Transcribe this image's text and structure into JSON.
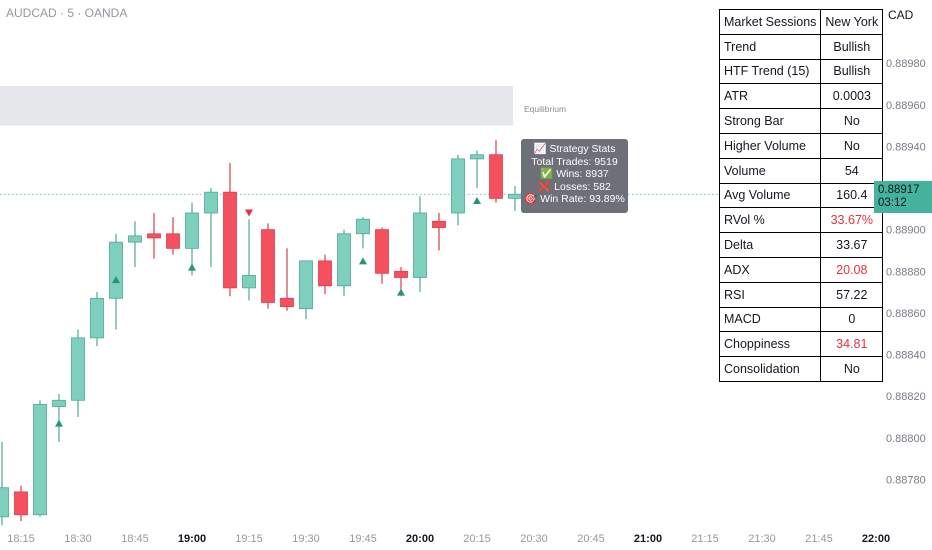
{
  "header": {
    "symbol": "AUDCAD · 5 · OANDA",
    "currency": "CAD"
  },
  "zone": {
    "label": "Equilibrium",
    "top": 0.88969,
    "bottom": 0.8895
  },
  "last_price": {
    "value": "0.88917",
    "countdown": "03:12",
    "level": 0.88917
  },
  "colors": {
    "up": "#7fcfbf",
    "down": "#f4505e",
    "marker_up": "#26947a",
    "marker_down": "#e5323e",
    "zone": "#e6e7ea"
  },
  "tooltip": {
    "title": "📈 Strategy Stats",
    "total": "Total Trades: 9519",
    "wins": "✅ Wins: 8937",
    "losses": "❌ Losses: 582",
    "winrate": "🎯 Win Rate: 93.89%"
  },
  "stats_table": [
    {
      "label": "Market Sessions",
      "value": "New York"
    },
    {
      "label": "Trend",
      "value": "Bullish"
    },
    {
      "label": "HTF Trend (15)",
      "value": "Bullish"
    },
    {
      "label": "ATR",
      "value": "0.0003"
    },
    {
      "label": "Strong Bar",
      "value": "No"
    },
    {
      "label": "Higher Volume",
      "value": "No"
    },
    {
      "label": "Volume",
      "value": "54"
    },
    {
      "label": "Avg Volume",
      "value": "160.4"
    },
    {
      "label": "RVol %",
      "value": "33.67%",
      "negative": true
    },
    {
      "label": "Delta",
      "value": "33.67"
    },
    {
      "label": "ADX",
      "value": "20.08",
      "negative": true
    },
    {
      "label": "RSI",
      "value": "57.22"
    },
    {
      "label": "MACD",
      "value": "0"
    },
    {
      "label": "Choppiness",
      "value": "34.81",
      "negative": true
    },
    {
      "label": "Consolidation",
      "value": "No"
    }
  ],
  "chart_data": {
    "type": "candlestick",
    "y_axis": {
      "min": 0.8876,
      "max": 0.89,
      "ticks": [
        "0.88780",
        "0.88800",
        "0.88820",
        "0.88840",
        "0.88860",
        "0.88880",
        "0.88900",
        "0.88920",
        "0.88940",
        "0.88960",
        "0.88980"
      ]
    },
    "x_axis": {
      "ticks": [
        {
          "label": "18:15",
          "bold": false
        },
        {
          "label": "18:30",
          "bold": false
        },
        {
          "label": "18:45",
          "bold": false
        },
        {
          "label": "19:00",
          "bold": true
        },
        {
          "label": "19:15",
          "bold": false
        },
        {
          "label": "19:30",
          "bold": false
        },
        {
          "label": "19:45",
          "bold": false
        },
        {
          "label": "20:00",
          "bold": true
        },
        {
          "label": "20:15",
          "bold": false
        },
        {
          "label": "20:30",
          "bold": false
        },
        {
          "label": "20:45",
          "bold": false
        },
        {
          "label": "21:00",
          "bold": true
        },
        {
          "label": "21:15",
          "bold": false
        },
        {
          "label": "21:30",
          "bold": false
        },
        {
          "label": "21:45",
          "bold": false
        },
        {
          "label": "22:00",
          "bold": true
        }
      ]
    },
    "candles": [
      {
        "o": 0.88762,
        "h": 0.88798,
        "l": 0.88758,
        "c": 0.88776
      },
      {
        "o": 0.88774,
        "h": 0.88777,
        "l": 0.8876,
        "c": 0.88763
      },
      {
        "o": 0.88763,
        "h": 0.88818,
        "l": 0.88762,
        "c": 0.88816
      },
      {
        "o": 0.88815,
        "h": 0.88821,
        "l": 0.88798,
        "c": 0.88818
      },
      {
        "o": 0.88818,
        "h": 0.88852,
        "l": 0.8881,
        "c": 0.88848
      },
      {
        "o": 0.88848,
        "h": 0.8887,
        "l": 0.88844,
        "c": 0.88867
      },
      {
        "o": 0.88867,
        "h": 0.88898,
        "l": 0.88852,
        "c": 0.88894
      },
      {
        "o": 0.88894,
        "h": 0.88904,
        "l": 0.88882,
        "c": 0.88897
      },
      {
        "o": 0.88898,
        "h": 0.88908,
        "l": 0.88886,
        "c": 0.88896
      },
      {
        "o": 0.88898,
        "h": 0.88906,
        "l": 0.88888,
        "c": 0.88891
      },
      {
        "o": 0.88891,
        "h": 0.88913,
        "l": 0.88878,
        "c": 0.88908
      },
      {
        "o": 0.88908,
        "h": 0.8892,
        "l": 0.88882,
        "c": 0.88918
      },
      {
        "o": 0.88918,
        "h": 0.88932,
        "l": 0.88868,
        "c": 0.88872
      },
      {
        "o": 0.88872,
        "h": 0.88905,
        "l": 0.88866,
        "c": 0.88878
      },
      {
        "o": 0.889,
        "h": 0.88903,
        "l": 0.88862,
        "c": 0.88865
      },
      {
        "o": 0.88867,
        "h": 0.88891,
        "l": 0.88861,
        "c": 0.88863
      },
      {
        "o": 0.88862,
        "h": 0.88885,
        "l": 0.88857,
        "c": 0.88885
      },
      {
        "o": 0.88885,
        "h": 0.88888,
        "l": 0.88869,
        "c": 0.88873
      },
      {
        "o": 0.88873,
        "h": 0.889,
        "l": 0.88868,
        "c": 0.88898
      },
      {
        "o": 0.88898,
        "h": 0.88906,
        "l": 0.88891,
        "c": 0.88905
      },
      {
        "o": 0.889,
        "h": 0.88901,
        "l": 0.88874,
        "c": 0.88879
      },
      {
        "o": 0.8888,
        "h": 0.88882,
        "l": 0.88868,
        "c": 0.88877
      },
      {
        "o": 0.88877,
        "h": 0.88916,
        "l": 0.8887,
        "c": 0.88908
      },
      {
        "o": 0.88904,
        "h": 0.88908,
        "l": 0.8889,
        "c": 0.88901
      },
      {
        "o": 0.88908,
        "h": 0.88936,
        "l": 0.88902,
        "c": 0.88934
      },
      {
        "o": 0.88934,
        "h": 0.88938,
        "l": 0.8892,
        "c": 0.88936
      },
      {
        "o": 0.88936,
        "h": 0.88943,
        "l": 0.88913,
        "c": 0.88915
      },
      {
        "o": 0.88915,
        "h": 0.88921,
        "l": 0.88909,
        "c": 0.88917
      }
    ],
    "signals": [
      {
        "i": 3,
        "dir": "up",
        "price": 0.88807
      },
      {
        "i": 6,
        "dir": "up",
        "price": 0.88876
      },
      {
        "i": 10,
        "dir": "up",
        "price": 0.88882
      },
      {
        "i": 13,
        "dir": "down",
        "price": 0.88908
      },
      {
        "i": 19,
        "dir": "up",
        "price": 0.88885
      },
      {
        "i": 21,
        "dir": "up",
        "price": 0.8887
      },
      {
        "i": 25,
        "dir": "up",
        "price": 0.88914
      }
    ]
  }
}
